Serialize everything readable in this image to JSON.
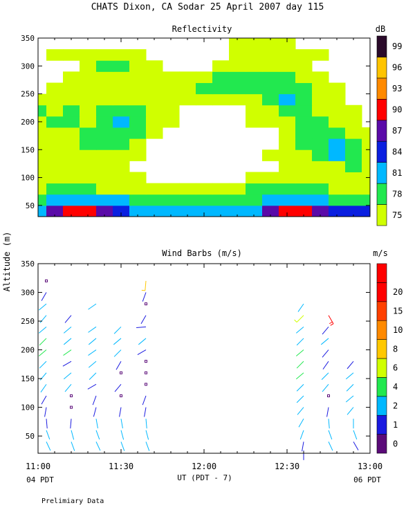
{
  "title": "CHATS Dixon, CA  Sodar  25 April 2007  day 115",
  "ylabel": "Altitude (m)",
  "xlabel": "UT  (PDT - 7)",
  "left_note": "04 PDT",
  "right_note": "06 PDT",
  "footer": "Prelimiary Data",
  "x_ticks": [
    "11:00",
    "11:30",
    "12:00",
    "12:30",
    "13:00"
  ],
  "chart_data": [
    {
      "type": "heatmap",
      "title": "Reflectivity",
      "xlabel": "UT  (PDT - 7)",
      "ylabel": "Altitude (m)",
      "xlim": [
        0,
        120
      ],
      "ylim": [
        30,
        350
      ],
      "y_ticks": [
        50,
        100,
        150,
        200,
        250,
        300,
        350
      ],
      "colorbar": {
        "unit": "dB",
        "levels": [
          75,
          78,
          81,
          84,
          87,
          90,
          93,
          96,
          99
        ],
        "colors": [
          "#d0ff00",
          "#22e84f",
          "#00b8ff",
          "#0a1fe0",
          "#5a0aa8",
          "#ff0000",
          "#ff8a00",
          "#ffc400",
          "#2a0a2a"
        ]
      },
      "x_minutes": [
        0,
        6,
        12,
        18,
        24,
        30,
        36,
        42,
        48,
        54,
        60,
        66,
        72,
        78,
        84,
        90,
        96,
        102,
        108,
        114,
        120
      ],
      "alt_m": [
        40,
        60,
        80,
        100,
        120,
        140,
        160,
        180,
        200,
        220,
        240,
        260,
        280,
        300,
        320,
        340
      ],
      "values_dB": [
        [
          81,
          87,
          90,
          90,
          87,
          84,
          81,
          81,
          81,
          81,
          81,
          81,
          81,
          81,
          87,
          90,
          90,
          87,
          84,
          84,
          84
        ],
        [
          78,
          81,
          81,
          81,
          81,
          81,
          78,
          78,
          78,
          78,
          78,
          78,
          78,
          78,
          81,
          81,
          81,
          81,
          78,
          78,
          78
        ],
        [
          75,
          78,
          78,
          78,
          75,
          75,
          75,
          75,
          75,
          75,
          75,
          75,
          75,
          78,
          78,
          78,
          78,
          78,
          75,
          75,
          75
        ],
        [
          75,
          75,
          75,
          75,
          75,
          75,
          75,
          72,
          72,
          72,
          72,
          72,
          72,
          75,
          75,
          75,
          75,
          75,
          75,
          75,
          75
        ],
        [
          75,
          75,
          75,
          75,
          75,
          75,
          72,
          72,
          72,
          72,
          72,
          72,
          72,
          72,
          72,
          75,
          75,
          75,
          75,
          78,
          75
        ],
        [
          75,
          75,
          75,
          75,
          75,
          75,
          75,
          72,
          72,
          72,
          72,
          72,
          72,
          72,
          75,
          75,
          75,
          78,
          81,
          78,
          75
        ],
        [
          75,
          75,
          75,
          78,
          78,
          78,
          75,
          72,
          72,
          72,
          72,
          72,
          72,
          72,
          72,
          75,
          78,
          78,
          81,
          78,
          75
        ],
        [
          75,
          75,
          75,
          78,
          78,
          78,
          78,
          75,
          72,
          72,
          72,
          72,
          72,
          72,
          72,
          75,
          78,
          78,
          78,
          75,
          75
        ],
        [
          75,
          78,
          78,
          75,
          78,
          81,
          78,
          75,
          75,
          72,
          72,
          72,
          72,
          75,
          75,
          75,
          78,
          78,
          75,
          75,
          72
        ],
        [
          78,
          75,
          78,
          75,
          78,
          78,
          78,
          75,
          75,
          72,
          72,
          72,
          72,
          75,
          75,
          78,
          78,
          75,
          75,
          75,
          72
        ],
        [
          75,
          75,
          75,
          75,
          75,
          75,
          75,
          75,
          75,
          75,
          75,
          75,
          75,
          75,
          78,
          81,
          78,
          75,
          75,
          72,
          72
        ],
        [
          72,
          75,
          75,
          75,
          75,
          75,
          75,
          75,
          75,
          75,
          78,
          78,
          78,
          78,
          78,
          78,
          78,
          75,
          75,
          72,
          72
        ],
        [
          72,
          72,
          75,
          75,
          75,
          75,
          75,
          75,
          75,
          75,
          75,
          78,
          78,
          78,
          78,
          78,
          75,
          75,
          72,
          72,
          72
        ],
        [
          72,
          72,
          72,
          75,
          78,
          78,
          75,
          75,
          72,
          72,
          72,
          75,
          75,
          75,
          75,
          75,
          75,
          72,
          72,
          72,
          72
        ],
        [
          72,
          75,
          75,
          75,
          75,
          75,
          75,
          72,
          72,
          72,
          72,
          72,
          75,
          75,
          75,
          75,
          75,
          75,
          72,
          72,
          72
        ],
        [
          72,
          72,
          72,
          72,
          72,
          72,
          72,
          72,
          72,
          72,
          72,
          72,
          75,
          75,
          75,
          75,
          72,
          72,
          72,
          72,
          72
        ]
      ]
    },
    {
      "type": "scatter",
      "title": "Wind Barbs (m/s)",
      "xlabel": "UT  (PDT - 7)",
      "ylabel": "Altitude (m)",
      "xlim": [
        0,
        120
      ],
      "ylim": [
        20,
        350
      ],
      "y_ticks": [
        50,
        100,
        150,
        200,
        250,
        300,
        350
      ],
      "colorbar": {
        "unit": "m/s",
        "levels": [
          0,
          1,
          2,
          4,
          6,
          8,
          10,
          15,
          20
        ],
        "colors": [
          "#5a0a78",
          "#1a1ae0",
          "#00b8ff",
          "#22e84f",
          "#d0ff00",
          "#ffc800",
          "#ff8a00",
          "#ff4000",
          "#ff0000",
          "#ff0000"
        ]
      },
      "profile_minutes": [
        3,
        12,
        21,
        30,
        39,
        96,
        105,
        114
      ],
      "barbs": [
        {
          "t": 3,
          "alt": 320,
          "spd": 0.5,
          "dir": 0,
          "calm": true
        },
        {
          "t": 3,
          "alt": 300,
          "spd": 1.5,
          "dir": 210
        },
        {
          "t": 3,
          "alt": 280,
          "spd": 3,
          "dir": 230
        },
        {
          "t": 3,
          "alt": 260,
          "spd": 2.5,
          "dir": 220
        },
        {
          "t": 3,
          "alt": 240,
          "spd": 3,
          "dir": 230
        },
        {
          "t": 3,
          "alt": 220,
          "spd": 4,
          "dir": 225
        },
        {
          "t": 3,
          "alt": 200,
          "spd": 4,
          "dir": 230
        },
        {
          "t": 3,
          "alt": 180,
          "spd": 3.5,
          "dir": 225
        },
        {
          "t": 3,
          "alt": 160,
          "spd": 3,
          "dir": 220
        },
        {
          "t": 3,
          "alt": 140,
          "spd": 2.5,
          "dir": 215
        },
        {
          "t": 3,
          "alt": 120,
          "spd": 1.5,
          "dir": 210
        },
        {
          "t": 3,
          "alt": 100,
          "spd": 1.5,
          "dir": 190
        },
        {
          "t": 3,
          "alt": 80,
          "spd": 1.5,
          "dir": 175
        },
        {
          "t": 3,
          "alt": 60,
          "spd": 2.5,
          "dir": 160
        },
        {
          "t": 3,
          "alt": 40,
          "spd": 3,
          "dir": 155
        },
        {
          "t": 12,
          "alt": 260,
          "spd": 1.5,
          "dir": 220
        },
        {
          "t": 12,
          "alt": 240,
          "spd": 2,
          "dir": 230
        },
        {
          "t": 12,
          "alt": 220,
          "spd": 3,
          "dir": 230
        },
        {
          "t": 12,
          "alt": 200,
          "spd": 4,
          "dir": 235
        },
        {
          "t": 12,
          "alt": 180,
          "spd": 1.5,
          "dir": 240
        },
        {
          "t": 12,
          "alt": 160,
          "spd": 3,
          "dir": 230
        },
        {
          "t": 12,
          "alt": 140,
          "spd": 2.5,
          "dir": 220
        },
        {
          "t": 12,
          "alt": 120,
          "spd": 0.5,
          "dir": 0,
          "calm": true
        },
        {
          "t": 12,
          "alt": 100,
          "spd": 0.5,
          "dir": 0,
          "calm": true
        },
        {
          "t": 12,
          "alt": 80,
          "spd": 1.5,
          "dir": 185
        },
        {
          "t": 12,
          "alt": 60,
          "spd": 2.5,
          "dir": 165
        },
        {
          "t": 12,
          "alt": 40,
          "spd": 3,
          "dir": 160
        },
        {
          "t": 21,
          "alt": 280,
          "spd": 3,
          "dir": 235
        },
        {
          "t": 21,
          "alt": 240,
          "spd": 3,
          "dir": 235
        },
        {
          "t": 21,
          "alt": 220,
          "spd": 3.5,
          "dir": 230
        },
        {
          "t": 21,
          "alt": 200,
          "spd": 3,
          "dir": 235
        },
        {
          "t": 21,
          "alt": 180,
          "spd": 3.5,
          "dir": 230
        },
        {
          "t": 21,
          "alt": 160,
          "spd": 3,
          "dir": 225
        },
        {
          "t": 21,
          "alt": 140,
          "spd": 1.5,
          "dir": 240
        },
        {
          "t": 21,
          "alt": 120,
          "spd": 1.5,
          "dir": 200
        },
        {
          "t": 21,
          "alt": 100,
          "spd": 1.5,
          "dir": 195
        },
        {
          "t": 21,
          "alt": 80,
          "spd": 2.5,
          "dir": 170
        },
        {
          "t": 21,
          "alt": 60,
          "spd": 3,
          "dir": 160
        },
        {
          "t": 21,
          "alt": 40,
          "spd": 3.5,
          "dir": 155
        },
        {
          "t": 30,
          "alt": 240,
          "spd": 2.5,
          "dir": 225
        },
        {
          "t": 30,
          "alt": 220,
          "spd": 3,
          "dir": 230
        },
        {
          "t": 30,
          "alt": 200,
          "spd": 3.5,
          "dir": 225
        },
        {
          "t": 30,
          "alt": 180,
          "spd": 1.5,
          "dir": 210
        },
        {
          "t": 30,
          "alt": 160,
          "spd": 0.5,
          "dir": 0,
          "calm": true
        },
        {
          "t": 30,
          "alt": 140,
          "spd": 1.5,
          "dir": 220
        },
        {
          "t": 30,
          "alt": 120,
          "spd": 0.5,
          "dir": 0,
          "calm": true
        },
        {
          "t": 30,
          "alt": 100,
          "spd": 1.5,
          "dir": 190
        },
        {
          "t": 30,
          "alt": 80,
          "spd": 2.5,
          "dir": 170
        },
        {
          "t": 30,
          "alt": 60,
          "spd": 3,
          "dir": 165
        },
        {
          "t": 30,
          "alt": 40,
          "spd": 3.5,
          "dir": 160
        },
        {
          "t": 39,
          "alt": 320,
          "spd": 9,
          "dir": 185
        },
        {
          "t": 39,
          "alt": 300,
          "spd": 1.5,
          "dir": 200
        },
        {
          "t": 39,
          "alt": 280,
          "spd": 0.5,
          "dir": 0,
          "calm": true
        },
        {
          "t": 39,
          "alt": 260,
          "spd": 1.5,
          "dir": 210
        },
        {
          "t": 39,
          "alt": 240,
          "spd": 1.5,
          "dir": 265
        },
        {
          "t": 39,
          "alt": 220,
          "spd": 3,
          "dir": 230
        },
        {
          "t": 39,
          "alt": 200,
          "spd": 1.5,
          "dir": 240
        },
        {
          "t": 39,
          "alt": 180,
          "spd": 0.5,
          "dir": 0,
          "calm": true
        },
        {
          "t": 39,
          "alt": 160,
          "spd": 0.5,
          "dir": 0,
          "calm": true
        },
        {
          "t": 39,
          "alt": 140,
          "spd": 0.5,
          "dir": 0,
          "calm": true
        },
        {
          "t": 39,
          "alt": 120,
          "spd": 1.5,
          "dir": 200
        },
        {
          "t": 39,
          "alt": 100,
          "spd": 1.5,
          "dir": 190
        },
        {
          "t": 39,
          "alt": 80,
          "spd": 2.5,
          "dir": 175
        },
        {
          "t": 39,
          "alt": 60,
          "spd": 3,
          "dir": 165
        },
        {
          "t": 39,
          "alt": 40,
          "spd": 3.5,
          "dir": 160
        },
        {
          "t": 96,
          "alt": 280,
          "spd": 3,
          "dir": 215
        },
        {
          "t": 96,
          "alt": 260,
          "spd": 6,
          "dir": 225
        },
        {
          "t": 96,
          "alt": 240,
          "spd": 3,
          "dir": 230
        },
        {
          "t": 96,
          "alt": 220,
          "spd": 3.5,
          "dir": 225
        },
        {
          "t": 96,
          "alt": 200,
          "spd": 4.5,
          "dir": 230
        },
        {
          "t": 96,
          "alt": 180,
          "spd": 4.5,
          "dir": 225
        },
        {
          "t": 96,
          "alt": 160,
          "spd": 4,
          "dir": 230
        },
        {
          "t": 96,
          "alt": 140,
          "spd": 3,
          "dir": 225
        },
        {
          "t": 96,
          "alt": 120,
          "spd": 3.5,
          "dir": 225
        },
        {
          "t": 96,
          "alt": 100,
          "spd": 3,
          "dir": 220
        },
        {
          "t": 96,
          "alt": 80,
          "spd": 2.5,
          "dir": 210
        },
        {
          "t": 96,
          "alt": 60,
          "spd": 2.5,
          "dir": 200
        },
        {
          "t": 96,
          "alt": 40,
          "spd": 1.5,
          "dir": 190
        },
        {
          "t": 96,
          "alt": 25,
          "spd": 1.5,
          "dir": 180
        },
        {
          "t": 105,
          "alt": 260,
          "spd": 20,
          "dir": 150
        },
        {
          "t": 105,
          "alt": 240,
          "spd": 1.5,
          "dir": 220
        },
        {
          "t": 105,
          "alt": 220,
          "spd": 3,
          "dir": 230
        },
        {
          "t": 105,
          "alt": 200,
          "spd": 1.5,
          "dir": 220
        },
        {
          "t": 105,
          "alt": 180,
          "spd": 1.5,
          "dir": 215
        },
        {
          "t": 105,
          "alt": 160,
          "spd": 3,
          "dir": 225
        },
        {
          "t": 105,
          "alt": 140,
          "spd": 2.5,
          "dir": 220
        },
        {
          "t": 105,
          "alt": 120,
          "spd": 0.5,
          "dir": 0,
          "calm": true
        },
        {
          "t": 105,
          "alt": 100,
          "spd": 1.5,
          "dir": 190
        },
        {
          "t": 105,
          "alt": 80,
          "spd": 2,
          "dir": 175
        },
        {
          "t": 105,
          "alt": 60,
          "spd": 2.5,
          "dir": 160
        },
        {
          "t": 105,
          "alt": 40,
          "spd": 3,
          "dir": 155
        },
        {
          "t": 114,
          "alt": 180,
          "spd": 1.5,
          "dir": 220
        },
        {
          "t": 114,
          "alt": 160,
          "spd": 3,
          "dir": 230
        },
        {
          "t": 114,
          "alt": 140,
          "spd": 3,
          "dir": 225
        },
        {
          "t": 114,
          "alt": 120,
          "spd": 3,
          "dir": 230
        },
        {
          "t": 114,
          "alt": 100,
          "spd": 2.5,
          "dir": 220
        },
        {
          "t": 114,
          "alt": 80,
          "spd": 2.5,
          "dir": 180
        },
        {
          "t": 114,
          "alt": 60,
          "spd": 2.5,
          "dir": 160
        },
        {
          "t": 114,
          "alt": 40,
          "spd": 1.5,
          "dir": 150
        }
      ]
    }
  ]
}
